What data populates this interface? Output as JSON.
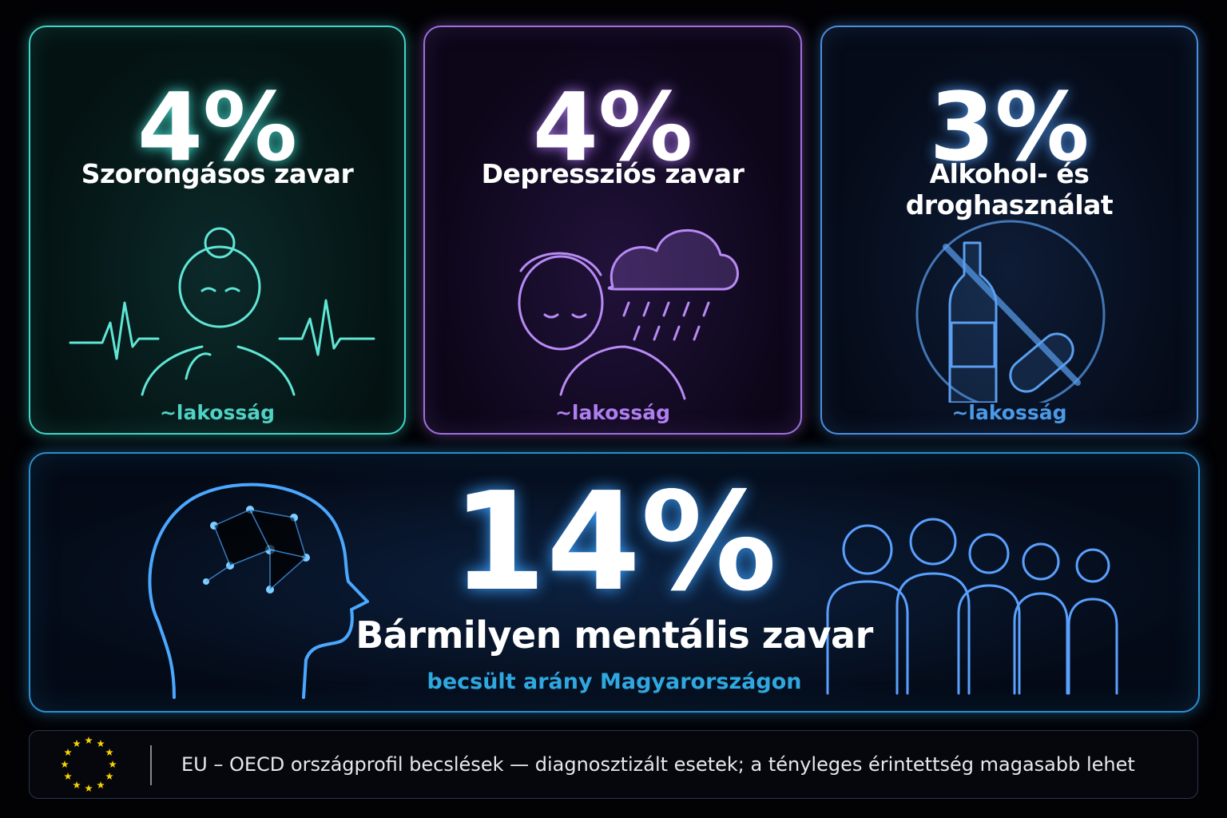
{
  "cards": [
    {
      "value": "4%",
      "label": "Szorongásos zavar",
      "note": "~lakosság"
    },
    {
      "value": "4%",
      "label": "Depressziós zavar",
      "note": "~lakosság"
    },
    {
      "value": "3%",
      "label": "Alkohol- és droghasználat",
      "note": "~lakosság"
    }
  ],
  "summary": {
    "value": "14%",
    "label": "Bármilyen mentális zavar",
    "note": "becsült arány Magyarországon"
  },
  "footer": {
    "text": "EU – OECD országprofil becslések — diagnosztizált esetek;  a tényleges érintettség magasabb lehet"
  }
}
